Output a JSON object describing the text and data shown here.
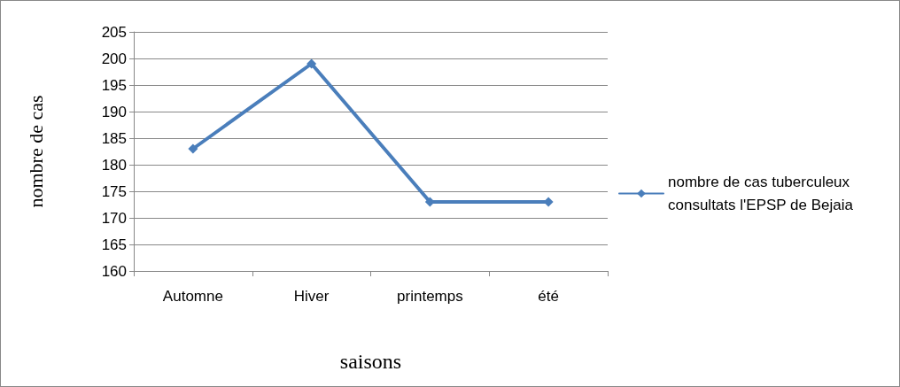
{
  "chart_data": {
    "type": "line",
    "xlabel": "saisons",
    "ylabel": "nombre de cas",
    "categories": [
      "Automne",
      "Hiver",
      "printemps",
      "été"
    ],
    "series": [
      {
        "name": "nombre de cas tuberculeux consultats l'EPSP de Bejaia",
        "color": "#4a7ebb",
        "values": [
          183,
          199,
          173,
          173
        ]
      }
    ],
    "ylim": [
      160,
      205
    ],
    "yticks": [
      160,
      165,
      170,
      175,
      180,
      185,
      190,
      195,
      200,
      205
    ],
    "grid": "y",
    "legend": "right",
    "marker": "diamond",
    "line_style": "solid"
  }
}
